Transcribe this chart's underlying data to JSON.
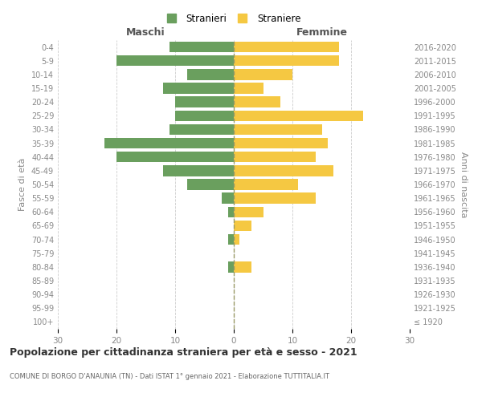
{
  "age_groups": [
    "100+",
    "95-99",
    "90-94",
    "85-89",
    "80-84",
    "75-79",
    "70-74",
    "65-69",
    "60-64",
    "55-59",
    "50-54",
    "45-49",
    "40-44",
    "35-39",
    "30-34",
    "25-29",
    "20-24",
    "15-19",
    "10-14",
    "5-9",
    "0-4"
  ],
  "birth_years": [
    "≤ 1920",
    "1921-1925",
    "1926-1930",
    "1931-1935",
    "1936-1940",
    "1941-1945",
    "1946-1950",
    "1951-1955",
    "1956-1960",
    "1961-1965",
    "1966-1970",
    "1971-1975",
    "1976-1980",
    "1981-1985",
    "1986-1990",
    "1991-1995",
    "1996-2000",
    "2001-2005",
    "2006-2010",
    "2011-2015",
    "2016-2020"
  ],
  "maschi": [
    0,
    0,
    0,
    0,
    1,
    0,
    1,
    0,
    1,
    2,
    8,
    12,
    20,
    22,
    11,
    10,
    10,
    12,
    8,
    20,
    11
  ],
  "femmine": [
    0,
    0,
    0,
    0,
    3,
    0,
    1,
    3,
    5,
    14,
    11,
    17,
    14,
    16,
    15,
    22,
    8,
    5,
    10,
    18,
    18
  ],
  "maschi_color": "#6a9f5e",
  "femmine_color": "#f5c842",
  "background_color": "#ffffff",
  "grid_color": "#cccccc",
  "title": "Popolazione per cittadinanza straniera per età e sesso - 2021",
  "subtitle": "COMUNE DI BORGO D'ANAUNIA (TN) - Dati ISTAT 1° gennaio 2021 - Elaborazione TUTTITALIA.IT",
  "ylabel_left": "Fasce di età",
  "ylabel_right": "Anni di nascita",
  "xlabel_left": "Maschi",
  "xlabel_right": "Femmine",
  "legend_maschi": "Stranieri",
  "legend_femmine": "Straniere",
  "xlim": 30
}
